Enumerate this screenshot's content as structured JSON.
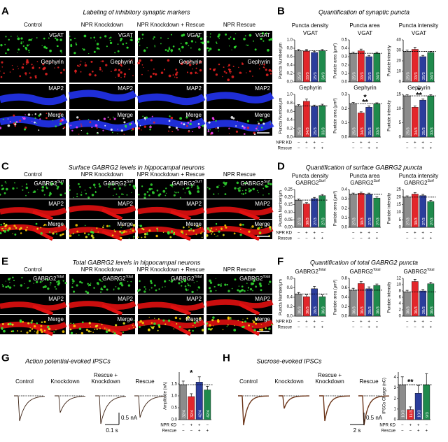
{
  "figure": {
    "A": {
      "letter": "A",
      "title": "Labeling of inhibitory synaptic markers",
      "columns": [
        "Control",
        "NPR Knockdown",
        "NPR Knockdown + Rescue",
        "NPR Rescue"
      ],
      "channels": [
        {
          "text": "VGAT"
        },
        {
          "text": "Gephyrin"
        },
        {
          "text": "MAP2"
        },
        {
          "text": "Merge"
        }
      ]
    },
    "B": {
      "letter": "B",
      "title": "Quantification of synaptic puncta",
      "groups": [
        "Puncta density",
        "Puncta area",
        "Puncta intensity"
      ],
      "row_labels": [
        "NPR KD",
        "Rescue"
      ]
    },
    "C": {
      "letter": "C",
      "title": "Surface GABRG2 levels in hippocampal neurons",
      "columns": [
        "Control",
        "NPR Knockdown",
        "NPR Knockdown + Rescue",
        "NPR Rescue"
      ],
      "channels": [
        {
          "text": "GABRG2",
          "sup": "Surf"
        },
        {
          "text": "MAP2"
        },
        {
          "text": "Merge"
        }
      ]
    },
    "D": {
      "letter": "D",
      "title": "Quantification of surface GABRG2 puncta",
      "groups": [
        "Puncta density",
        "Puncta area",
        "Puncta intensity"
      ],
      "row_labels": [
        "NPR KD",
        "Rescue"
      ]
    },
    "E": {
      "letter": "E",
      "title": "Total GABRG2 levels in hippocampal neurons",
      "columns": [
        "Control",
        "NPR Knockdown",
        "NPR Knockdown + Rescue",
        "NPR Rescue"
      ],
      "channels": [
        {
          "text": "GABRG2",
          "sup": "Total"
        },
        {
          "text": "MAP2"
        },
        {
          "text": "Merge"
        }
      ]
    },
    "F": {
      "letter": "F",
      "title": "Quantification of total GABRG2 puncta",
      "row_labels": [
        "NPR KD",
        "Rescue"
      ]
    },
    "G": {
      "letter": "G",
      "title": "Action potential-evoked IPSCs",
      "traces": [
        [
          "Control"
        ],
        [
          "Knockdown"
        ],
        [
          "Rescue +",
          "Knockdown"
        ],
        [
          "Rescue"
        ]
      ],
      "scale_y": "0.5 nA",
      "scale_x": "0.1 s",
      "row_labels": [
        "NPR KD",
        "Rescue"
      ]
    },
    "H": {
      "letter": "H",
      "title": "Sucrose-evoked IPSCs",
      "traces": [
        [
          "Control"
        ],
        [
          "Knockdown"
        ],
        [
          "Rescue +",
          "Knockdown"
        ],
        [
          "Rescue"
        ]
      ],
      "scale_y": "0.5 nA",
      "scale_x": "2 s",
      "row_labels": [
        "NPR KD",
        "Rescue"
      ]
    }
  },
  "chart_data": [
    {
      "type": "bar",
      "title": "VGAT",
      "ylabel": "Puncta Number/μm",
      "ylim": [
        0,
        1
      ],
      "yticks": [
        {
          "value": 0,
          "label": "0.0"
        },
        0.2,
        0.4,
        0.6,
        0.8,
        {
          "value": 1,
          "label": "1.0"
        }
      ],
      "values": [
        0.74,
        0.73,
        0.7,
        0.74
      ],
      "errors": [
        0.03,
        0.04,
        0.03,
        0.03
      ],
      "colors": [
        "#8c8c8c",
        "#e3262b",
        "#2b3d9c",
        "#1f8a4c"
      ],
      "n_labels": [
        "25/3",
        "33/3",
        "25/3",
        "34/3"
      ]
    },
    {
      "type": "bar",
      "title": "VGAT",
      "ylabel": "Puntate area (μm²)",
      "ylim": [
        0,
        0.5
      ],
      "yticks": [
        {
          "value": 0,
          "label": "0.0"
        },
        0.1,
        0.2,
        0.3,
        0.4,
        0.5
      ],
      "values": [
        0.34,
        0.37,
        0.3,
        0.34
      ],
      "errors": [
        0.015,
        0.02,
        0.015,
        0.015
      ],
      "colors": [
        "#8c8c8c",
        "#e3262b",
        "#2b3d9c",
        "#1f8a4c"
      ],
      "n_labels": [
        "25/3",
        "33/3",
        "25/3",
        "34/3"
      ]
    },
    {
      "type": "bar",
      "title": "VGAT",
      "ylabel": "Puntate intensity",
      "ylim": [
        0,
        40
      ],
      "yticks": [
        0,
        10,
        20,
        30,
        40
      ],
      "values": [
        29,
        31,
        24,
        28
      ],
      "errors": [
        1.2,
        2,
        1.2,
        1
      ],
      "colors": [
        "#8c8c8c",
        "#e3262b",
        "#2b3d9c",
        "#1f8a4c"
      ],
      "n_labels": [
        "25/3",
        "33/3",
        "25/3",
        "34/3"
      ]
    },
    {
      "type": "bar",
      "title": "Gephyrin",
      "ylabel": "Puncta Number/μm",
      "ylim": [
        0,
        1
      ],
      "yticks": [
        {
          "value": 0,
          "label": "0.0"
        },
        0.2,
        0.4,
        0.6,
        0.8,
        {
          "value": 1,
          "label": "1.0"
        }
      ],
      "values": [
        0.73,
        0.84,
        0.72,
        0.74
      ],
      "errors": [
        0.03,
        0.05,
        0.03,
        0.03
      ],
      "colors": [
        "#8c8c8c",
        "#e3262b",
        "#2b3d9c",
        "#1f8a4c"
      ],
      "n_labels": [
        "25/3",
        "34/3",
        "25/3",
        "33/3"
      ],
      "kd_marks": [
        "−",
        "+",
        "+",
        "−"
      ],
      "rescue_marks": [
        "−",
        "−",
        "+",
        "+"
      ]
    },
    {
      "type": "bar",
      "title": "Gephyrin",
      "ylabel": "Puntate area (μm²)",
      "ylim": [
        0,
        0.3
      ],
      "yticks": [
        {
          "value": 0,
          "label": "0.0"
        },
        0.1,
        0.2,
        0.3
      ],
      "values": [
        0.235,
        0.17,
        0.21,
        0.235
      ],
      "errors": [
        0.008,
        0.008,
        0.008,
        0.006
      ],
      "colors": [
        "#8c8c8c",
        "#e3262b",
        "#2b3d9c",
        "#1f8a4c"
      ],
      "n_labels": [
        "25/3",
        "34/3",
        "25/3",
        "33/3"
      ],
      "kd_marks": [
        "−",
        "+",
        "+",
        "−"
      ],
      "rescue_marks": [
        "−",
        "−",
        "+",
        "+"
      ],
      "annotations": [
        "*",
        "**"
      ]
    },
    {
      "type": "bar",
      "title": "Gephyrin",
      "ylabel": "Puntate intensity",
      "ylim": [
        0,
        15
      ],
      "yticks": [
        0,
        5,
        10,
        15
      ],
      "values": [
        14.5,
        10.5,
        13,
        14.5
      ],
      "errors": [
        0.4,
        0.4,
        0.4,
        0.4
      ],
      "colors": [
        "#8c8c8c",
        "#e3262b",
        "#2b3d9c",
        "#1f8a4c"
      ],
      "n_labels": [
        "25/3",
        "34/3",
        "25/3",
        "33/3"
      ],
      "kd_marks": [
        "−",
        "+",
        "+",
        "−"
      ],
      "rescue_marks": [
        "−",
        "−",
        "+",
        "+"
      ],
      "annotations": [
        "*",
        "**"
      ]
    },
    {
      "type": "bar",
      "title": "GABRG2",
      "title_sup": "Surf",
      "ylabel": "Puncta Number/μm",
      "ylim": [
        0,
        0.25
      ],
      "yticks": [
        {
          "value": 0,
          "label": "0.00"
        },
        0.05,
        {
          "value": 0.1,
          "label": "0.10"
        },
        0.15,
        {
          "value": 0.2,
          "label": "0.20"
        },
        0.25
      ],
      "values": [
        0.18,
        0.155,
        0.19,
        0.21
      ],
      "errors": [
        0.007,
        0.008,
        0.008,
        0.007
      ],
      "colors": [
        "#8c8c8c",
        "#e3262b",
        "#2b3d9c",
        "#1f8a4c"
      ],
      "n_labels": [
        "27/3",
        "30/3",
        "27/3",
        "27/3"
      ],
      "kd_marks": [
        "−",
        "+",
        "+",
        "−"
      ],
      "rescue_marks": [
        "−",
        "−",
        "+",
        "+"
      ]
    },
    {
      "type": "bar",
      "title": "GABRG2",
      "title_sup": "Surf",
      "ylabel": "Puntate area (μm²)",
      "ylim": [
        0,
        0.4
      ],
      "yticks": [
        {
          "value": 0,
          "label": "0.0"
        },
        0.1,
        0.2,
        0.3,
        0.4
      ],
      "values": [
        0.35,
        0.36,
        0.35,
        0.31
      ],
      "errors": [
        0.012,
        0.012,
        0.012,
        0.012
      ],
      "colors": [
        "#8c8c8c",
        "#e3262b",
        "#2b3d9c",
        "#1f8a4c"
      ],
      "n_labels": [
        "27/3",
        "30/3",
        "27/3",
        "27/3"
      ],
      "kd_marks": [
        "−",
        "+",
        "+",
        "−"
      ],
      "rescue_marks": [
        "−",
        "−",
        "+",
        "+"
      ]
    },
    {
      "type": "bar",
      "title": "GABRG2",
      "title_sup": "Surf",
      "ylabel": "Puntate intensity",
      "ylim": [
        0,
        25
      ],
      "yticks": [
        0,
        5,
        10,
        15,
        20,
        25
      ],
      "values": [
        20,
        22,
        21,
        17
      ],
      "errors": [
        0.8,
        1,
        0.8,
        0.8
      ],
      "colors": [
        "#8c8c8c",
        "#e3262b",
        "#2b3d9c",
        "#1f8a4c"
      ],
      "n_labels": [
        "27/3",
        "30/3",
        "27/3",
        "27/3"
      ],
      "kd_marks": [
        "−",
        "+",
        "+",
        "−"
      ],
      "rescue_marks": [
        "−",
        "−",
        "+",
        "+"
      ]
    },
    {
      "type": "bar",
      "title": "GABRG2",
      "title_sup": "Total",
      "ylabel": "Puncta Number/μm",
      "ylim": [
        0,
        0.8
      ],
      "yticks": [
        {
          "value": 0,
          "label": "0.0"
        },
        0.2,
        0.4,
        0.6,
        0.8
      ],
      "values": [
        0.47,
        0.41,
        0.58,
        0.41
      ],
      "errors": [
        0.03,
        0.04,
        0.05,
        0.04
      ],
      "colors": [
        "#8c8c8c",
        "#e3262b",
        "#2b3d9c",
        "#1f8a4c"
      ],
      "n_labels": [
        "30/3",
        "30/3",
        "28/3",
        "30/3"
      ],
      "kd_marks": [
        "−",
        "+",
        "+",
        "−"
      ],
      "rescue_marks": [
        "−",
        "−",
        "+",
        "+"
      ]
    },
    {
      "type": "bar",
      "title": "GABRG2",
      "title_sup": "Total",
      "ylabel": "Puntate area (μm²)",
      "ylim": [
        0,
        0.8
      ],
      "yticks": [
        {
          "value": 0,
          "label": "0.0"
        },
        0.2,
        0.4,
        0.6,
        0.8
      ],
      "values": [
        0.55,
        0.69,
        0.58,
        0.65
      ],
      "errors": [
        0.04,
        0.04,
        0.04,
        0.03
      ],
      "colors": [
        "#8c8c8c",
        "#e3262b",
        "#2b3d9c",
        "#1f8a4c"
      ],
      "n_labels": [
        "30/3",
        "30/3",
        "28/3",
        "30/3"
      ],
      "kd_marks": [
        "−",
        "+",
        "+",
        "−"
      ],
      "rescue_marks": [
        "−",
        "−",
        "+",
        "+"
      ]
    },
    {
      "type": "bar",
      "title": "GABRG2",
      "title_sup": "Total",
      "ylabel": "Puntate intensity",
      "ylim": [
        0,
        12
      ],
      "yticks": [
        0,
        2,
        4,
        6,
        8,
        10,
        12
      ],
      "values": [
        7.7,
        11,
        8,
        10.3
      ],
      "errors": [
        0.5,
        0.7,
        0.5,
        0.5
      ],
      "colors": [
        "#8c8c8c",
        "#e3262b",
        "#2b3d9c",
        "#1f8a4c"
      ],
      "n_labels": [
        "30/3",
        "30/3",
        "28/3",
        "30/3"
      ],
      "kd_marks": [
        "−",
        "+",
        "+",
        "−"
      ],
      "rescue_marks": [
        "−",
        "−",
        "+",
        "+"
      ]
    },
    {
      "type": "bar",
      "ylabel": "Amplitude (nA)",
      "ylim": [
        0,
        2
      ],
      "yticks": [
        {
          "value": 0,
          "label": "0.0"
        },
        0.5,
        {
          "value": 1,
          "label": "1.0"
        },
        1.5
      ],
      "values": [
        1.47,
        0.97,
        1.58,
        1.25
      ],
      "errors": [
        0.15,
        0.12,
        0.22,
        0.15
      ],
      "colors": [
        "#8c8c8c",
        "#e3262b",
        "#2b3d9c",
        "#1f8a4c"
      ],
      "n_labels": [
        "32/4",
        "32/4",
        "42/4",
        "42/4"
      ],
      "kd_marks": [
        "−",
        "+",
        "+",
        "−"
      ],
      "rescue_marks": [
        "−",
        "−",
        "+",
        "+"
      ],
      "annotations": [
        "*"
      ]
    },
    {
      "type": "bar",
      "ylabel": "IPSCs Charge (nC)",
      "ylim": [
        0,
        4.5
      ],
      "yticks": [
        0,
        1,
        2,
        3,
        4
      ],
      "values": [
        3.3,
        0.95,
        2.5,
        3.3
      ],
      "errors": [
        0.75,
        0.25,
        0.7,
        1.05
      ],
      "colors": [
        "#8c8c8c",
        "#e3262b",
        "#2b3d9c",
        "#1f8a4c"
      ],
      "n_labels": [
        "10/3",
        "11/3",
        "10/3",
        "9/3"
      ],
      "kd_marks": [
        "−",
        "+",
        "+",
        "−"
      ],
      "rescue_marks": [
        "−",
        "−",
        "+",
        "+"
      ],
      "annotations": [
        "**"
      ]
    }
  ]
}
